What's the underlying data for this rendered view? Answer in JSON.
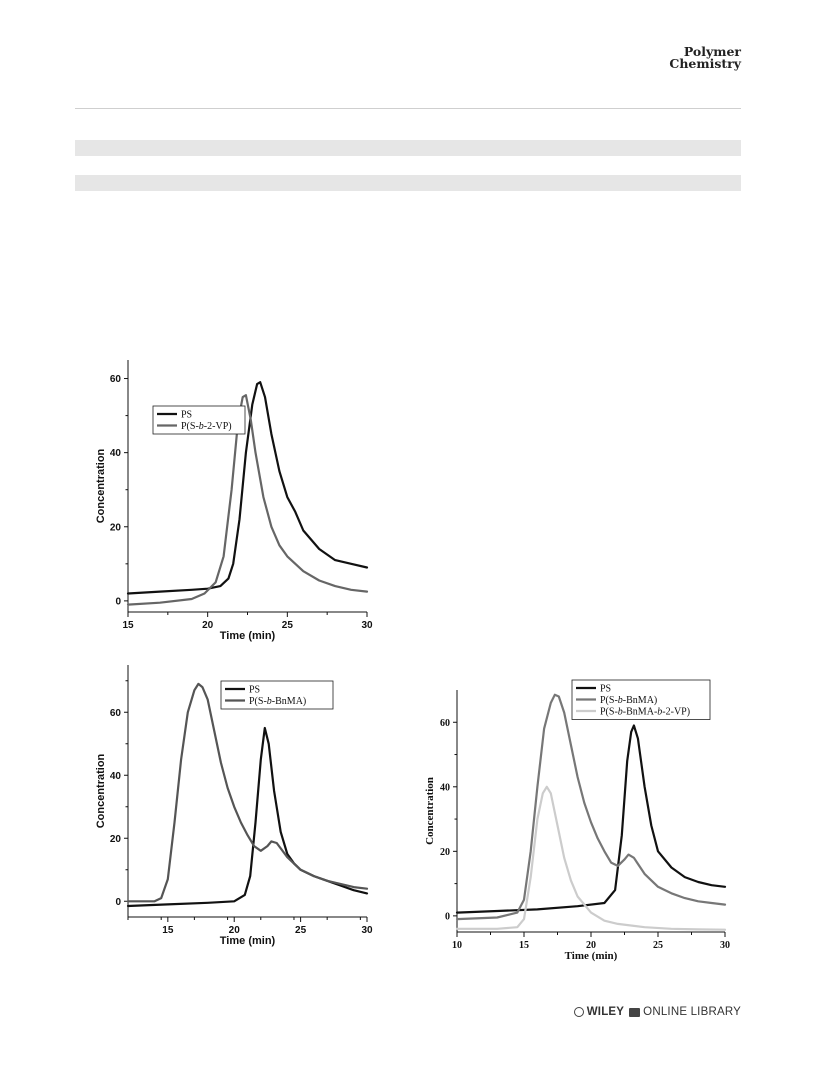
{
  "header": {
    "journal_line1": "Polymer",
    "journal_line2": "Chemistry"
  },
  "footer": {
    "wiley": "WILEY",
    "library": "ONLINE LIBRARY"
  },
  "chart_data": [
    {
      "type": "line",
      "xlabel": "Time (min)",
      "ylabel": "Concentration",
      "xlim": [
        15,
        30
      ],
      "ylim": [
        -3,
        65
      ],
      "xticks": [
        15,
        20,
        25,
        30
      ],
      "yticks": [
        0,
        20,
        40,
        60
      ],
      "legend_position": "top-left",
      "series": [
        {
          "name": "PS",
          "color": "#111111",
          "x": [
            15,
            17,
            19,
            20,
            20.8,
            21.3,
            21.6,
            22,
            22.4,
            22.8,
            23.1,
            23.3,
            23.6,
            24,
            24.5,
            25,
            25.5,
            26,
            27,
            28,
            29,
            30
          ],
          "y": [
            2,
            2.5,
            3,
            3.3,
            4,
            6,
            10,
            22,
            40,
            53,
            58.5,
            59,
            55,
            45,
            35,
            28,
            24,
            19,
            14,
            11,
            10,
            9
          ]
        },
        {
          "name": "P(S-b-2-VP)",
          "color": "#666666",
          "x": [
            15,
            17,
            19,
            19.8,
            20.5,
            21,
            21.5,
            21.9,
            22.2,
            22.4,
            22.7,
            23,
            23.5,
            24,
            24.5,
            25,
            26,
            27,
            28,
            29,
            30
          ],
          "y": [
            -1,
            -0.5,
            0.5,
            2,
            5,
            12,
            30,
            48,
            55,
            55.5,
            49,
            40,
            28,
            20,
            15,
            12,
            8,
            5.5,
            4,
            3,
            2.5
          ]
        }
      ]
    },
    {
      "type": "line",
      "xlabel": "Time (min)",
      "ylabel": "Concentration",
      "xlim": [
        12,
        30
      ],
      "ylim": [
        -5,
        75
      ],
      "xticks": [
        15,
        20,
        25,
        30
      ],
      "yticks": [
        0,
        20,
        40,
        60
      ],
      "legend_position": "top-right",
      "series": [
        {
          "name": "PS",
          "color": "#111111",
          "x": [
            12,
            15,
            18,
            20,
            20.8,
            21.2,
            21.6,
            22,
            22.3,
            22.6,
            23,
            23.5,
            24,
            24.5,
            25,
            26,
            27,
            28,
            29,
            30
          ],
          "y": [
            -1.5,
            -1,
            -0.5,
            0,
            2,
            8,
            25,
            45,
            55,
            50,
            35,
            22,
            15,
            12,
            10,
            8,
            6.5,
            5,
            3.5,
            2.5
          ]
        },
        {
          "name": "P(S-b-BnMA)",
          "color": "#555555",
          "x": [
            12,
            14,
            14.5,
            15,
            15.5,
            16,
            16.5,
            17,
            17.3,
            17.6,
            18,
            18.5,
            19,
            19.5,
            20,
            20.5,
            21,
            21.5,
            22,
            22.5,
            22.8,
            23.2,
            24,
            25,
            26,
            27,
            28,
            29,
            30
          ],
          "y": [
            0,
            0,
            1,
            7,
            25,
            45,
            60,
            67,
            69,
            68,
            64,
            54,
            44,
            36,
            30,
            25,
            21,
            17.5,
            16,
            17.5,
            19,
            18.5,
            14,
            10,
            8,
            6.5,
            5.5,
            4.5,
            4
          ]
        }
      ]
    },
    {
      "type": "line",
      "xlabel": "Time (min)",
      "ylabel": "Concentration",
      "xlim": [
        10,
        30
      ],
      "ylim": [
        -5,
        70
      ],
      "xticks": [
        10,
        15,
        20,
        25,
        30
      ],
      "yticks": [
        0,
        20,
        40,
        60
      ],
      "legend_position": "top-center",
      "series": [
        {
          "name": "PS",
          "color": "#111111",
          "x": [
            10,
            13,
            16,
            19,
            21,
            21.8,
            22.3,
            22.7,
            23,
            23.2,
            23.5,
            24,
            24.5,
            25,
            26,
            27,
            28,
            29,
            30
          ],
          "y": [
            1,
            1.5,
            2,
            3,
            4,
            8,
            25,
            48,
            57,
            59,
            55,
            40,
            28,
            20,
            15,
            12,
            10.5,
            9.5,
            9
          ]
        },
        {
          "name": "P(S-b-BnMA)",
          "color": "#777777",
          "x": [
            10,
            13,
            14.5,
            15,
            15.5,
            16,
            16.5,
            17,
            17.3,
            17.6,
            18,
            18.5,
            19,
            19.5,
            20,
            20.5,
            21,
            21.5,
            22,
            22.5,
            22.8,
            23.2,
            24,
            25,
            26,
            27,
            28,
            29,
            30
          ],
          "y": [
            -1,
            -0.5,
            1,
            5,
            20,
            40,
            58,
            66,
            68.5,
            68,
            63,
            53,
            43,
            35,
            29,
            24,
            20,
            16.5,
            15.5,
            17.5,
            19,
            18,
            13,
            9,
            7,
            5.5,
            4.5,
            4,
            3.5
          ]
        },
        {
          "name": "P(S-b-BnMA-b-2-VP)",
          "color": "#cccccc",
          "x": [
            10,
            13,
            14.5,
            15,
            15.5,
            16,
            16.4,
            16.7,
            17,
            17.5,
            18,
            18.5,
            19,
            20,
            21,
            22,
            24,
            26,
            28,
            30
          ],
          "y": [
            -4,
            -4,
            -3.5,
            -1,
            12,
            30,
            38,
            40,
            38,
            28,
            18,
            11,
            6,
            1,
            -1.5,
            -2.5,
            -3.5,
            -4,
            -4.2,
            -4.3
          ]
        }
      ]
    }
  ]
}
